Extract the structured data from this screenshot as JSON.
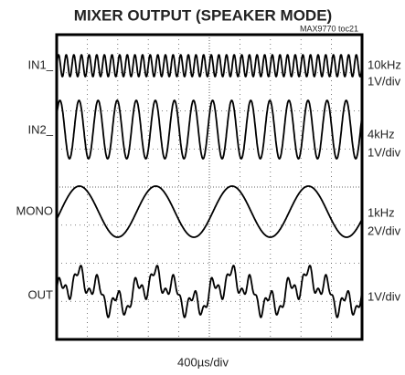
{
  "title": "MIXER OUTPUT (SPEAKER MODE)",
  "note": "MAX9770 toc21",
  "channels": [
    {
      "label": "IN1_",
      "scale": [
        "10kHz",
        "1V/div"
      ]
    },
    {
      "label": "IN2_",
      "scale": [
        "4kHz",
        "1V/div"
      ]
    },
    {
      "label": "MONO",
      "scale": [
        "1kHz",
        "2V/div"
      ]
    },
    {
      "label": "OUT",
      "scale": [
        "1V/div"
      ]
    }
  ],
  "x_label": "400µs/div"
}
